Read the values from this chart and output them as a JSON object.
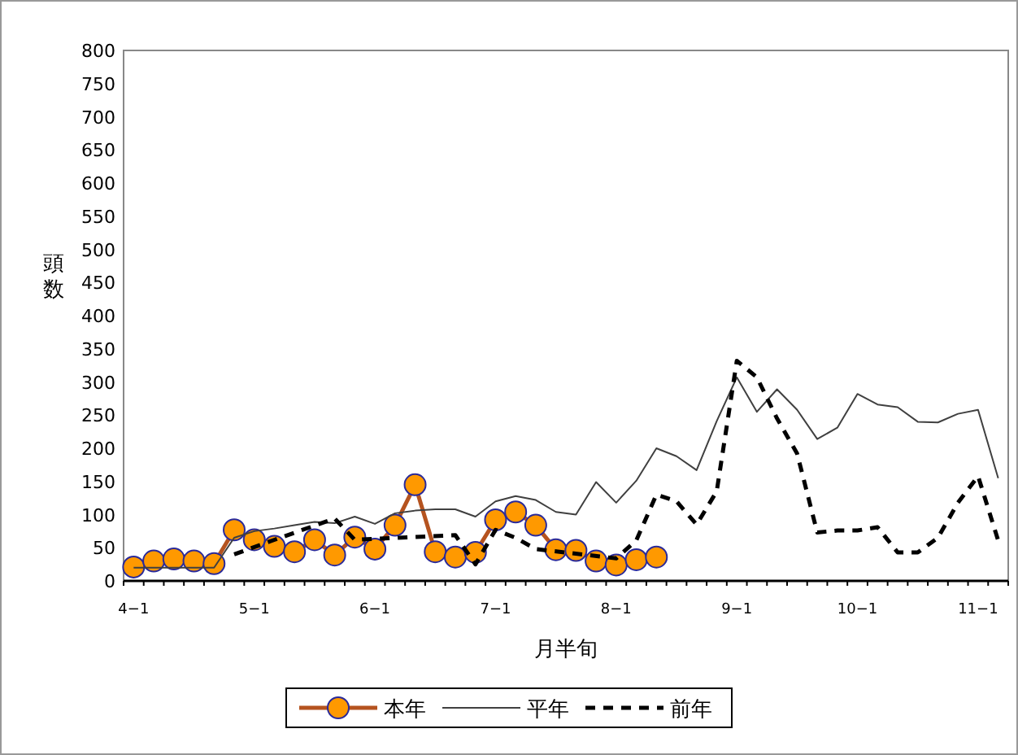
{
  "chart_data": {
    "type": "line",
    "xlabel": "月半旬",
    "ylabel": "頭数",
    "legend": "bottom",
    "categories": [
      "4−1",
      null,
      null,
      null,
      null,
      null,
      "5−1",
      null,
      null,
      null,
      null,
      null,
      "6−1",
      null,
      null,
      null,
      null,
      null,
      "7−1",
      null,
      null,
      null,
      null,
      null,
      "8−1",
      null,
      null,
      null,
      null,
      null,
      "9−1",
      null,
      null,
      null,
      null,
      null,
      "10−1",
      null,
      null,
      null,
      null,
      null,
      "11−1",
      null
    ],
    "ylim": [
      0,
      800
    ],
    "yticks": [
      0,
      50,
      100,
      150,
      200,
      250,
      300,
      350,
      400,
      450,
      500,
      550,
      600,
      650,
      700,
      750,
      800
    ],
    "series": [
      {
        "name": "本年",
        "color": "#ff9900",
        "marker": "circle",
        "line_style": "solid",
        "values": [
          21,
          30,
          33,
          30,
          26,
          77,
          62,
          52,
          44,
          62,
          39,
          66,
          48,
          84,
          145,
          44,
          36,
          43,
          92,
          104,
          84,
          47,
          46,
          30,
          24,
          32,
          36,
          null,
          null,
          null,
          null,
          null,
          null,
          null,
          null,
          null,
          null,
          null,
          null,
          null,
          null,
          null,
          null,
          null
        ]
      },
      {
        "name": "平年",
        "color": "#404040",
        "marker": "none",
        "line_style": "solid",
        "values": [
          20,
          20,
          20,
          20,
          20,
          65,
          75,
          79,
          84,
          89,
          87,
          97,
          86,
          102,
          106,
          108,
          108,
          97,
          120,
          128,
          122,
          104,
          100,
          149,
          118,
          151,
          200,
          188,
          167,
          241,
          307,
          255,
          289,
          258,
          214,
          231,
          282,
          266,
          262,
          240,
          239,
          252,
          258,
          155
        ]
      },
      {
        "name": "前年",
        "color": "#000000",
        "marker": "none",
        "line_style": "dashed",
        "values": [
          null,
          null,
          null,
          null,
          null,
          40,
          null,
          62,
          null,
          null,
          94,
          62,
          null,
          null,
          null,
          null,
          69,
          25,
          77,
          65,
          48,
          null,
          null,
          null,
          34,
          61,
          130,
          120,
          85,
          135,
          332,
          307,
          245,
          192,
          73,
          76,
          76,
          81,
          43,
          43,
          65,
          118,
          158,
          61
        ]
      }
    ]
  }
}
